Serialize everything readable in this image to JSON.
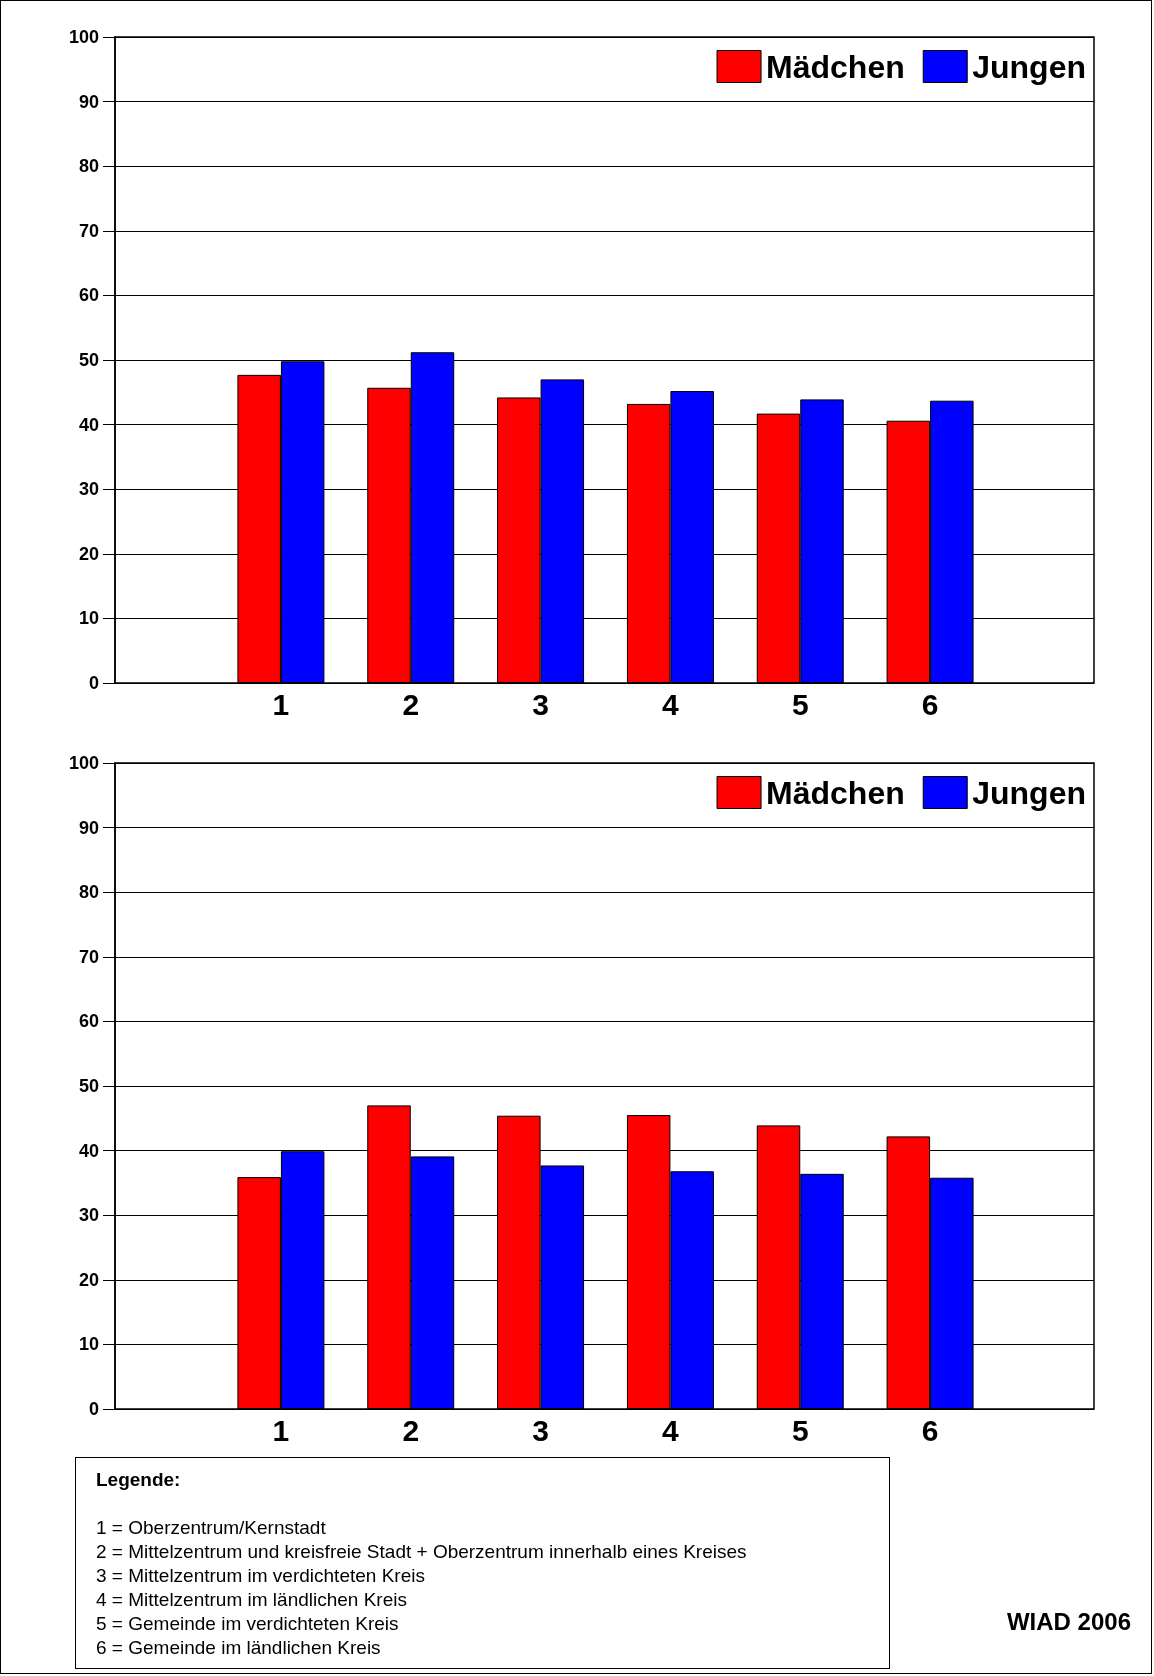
{
  "chart_data": [
    {
      "type": "bar",
      "categories": [
        "1",
        "2",
        "3",
        "4",
        "5",
        "6"
      ],
      "series": [
        {
          "name": "Mädchen",
          "color": "#ff0000",
          "values": [
            47.7,
            45.7,
            44.2,
            43.2,
            41.7,
            40.6
          ]
        },
        {
          "name": "Jungen",
          "color": "#0000ff",
          "values": [
            49.8,
            51.2,
            47.0,
            45.2,
            43.9,
            43.7
          ]
        }
      ],
      "ylim": [
        0,
        100
      ],
      "yticks": [
        0,
        10,
        20,
        30,
        40,
        50,
        60,
        70,
        80,
        90,
        100
      ],
      "grid": "y",
      "legend": "top right"
    },
    {
      "type": "bar",
      "categories": [
        "1",
        "2",
        "3",
        "4",
        "5",
        "6"
      ],
      "series": [
        {
          "name": "Mädchen",
          "color": "#ff0000",
          "values": [
            35.9,
            47.0,
            45.4,
            45.5,
            43.9,
            42.2
          ]
        },
        {
          "name": "Jungen",
          "color": "#0000ff",
          "values": [
            39.9,
            39.1,
            37.7,
            36.8,
            36.4,
            35.8
          ]
        }
      ],
      "ylim": [
        0,
        100
      ],
      "yticks": [
        0,
        10,
        20,
        30,
        40,
        50,
        60,
        70,
        80,
        90,
        100
      ],
      "grid": "y",
      "legend": "top right",
      "annotations": [
        "Legende:",
        "1 = Oberzentrum/Kernstadt",
        "2 = Mittelzentrum und kreisfreie Stadt + Oberzentrum innerhalb eines Kreises",
        "3 = Mittelzentrum im verdichteten Kreis",
        "4 = Mittelzentrum im ländlichen Kreis",
        "5 = Gemeinde im verdichteten Kreis",
        "6 = Gemeinde im ländlichen Kreis",
        "WIAD 2006"
      ]
    }
  ]
}
